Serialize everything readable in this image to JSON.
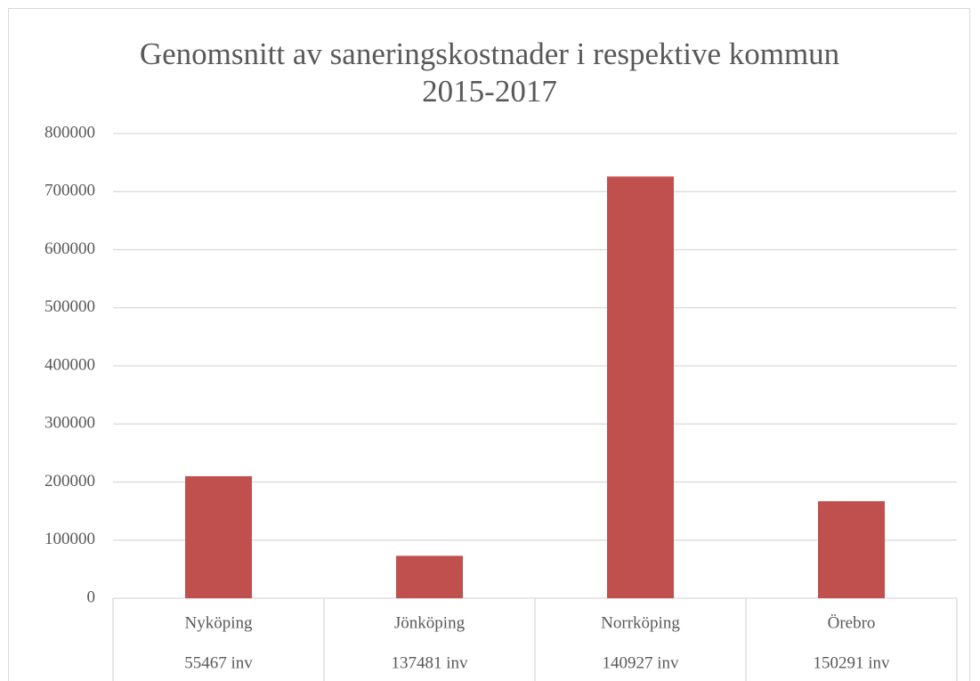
{
  "chart_data": {
    "type": "bar",
    "title": "Genomsnitt av saneringskostnader i respektive kommun 2015-2017",
    "categories": [
      "Nyköping",
      "Jönköping",
      "Norrköping",
      "Örebro"
    ],
    "subcategories": [
      "55467 inv",
      "137481 inv",
      "140927 inv",
      "150291 inv"
    ],
    "values": [
      210000,
      73000,
      726000,
      167000
    ],
    "color": "#c0504d",
    "ylim": [
      0,
      800000
    ],
    "yticks": [
      0,
      100000,
      200000,
      300000,
      400000,
      500000,
      600000,
      700000,
      800000
    ],
    "grid": true
  }
}
